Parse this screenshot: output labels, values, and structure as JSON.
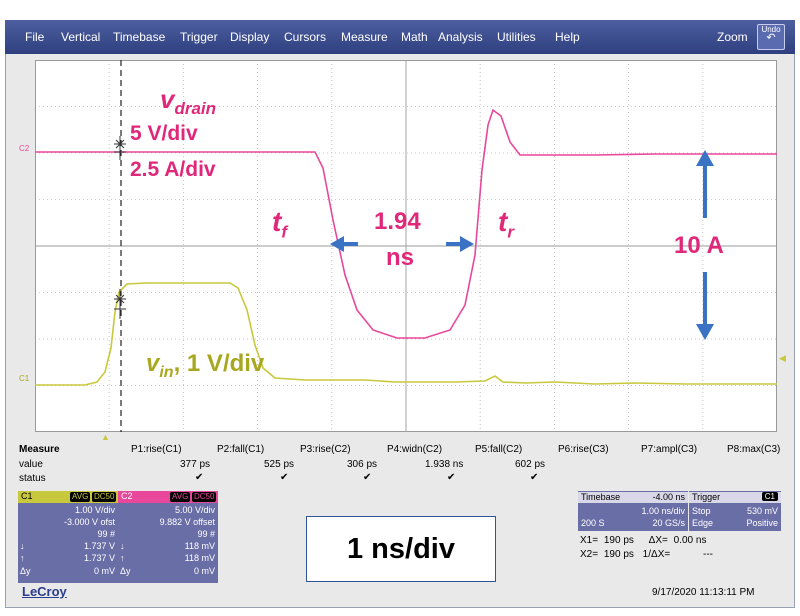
{
  "menu": [
    "File",
    "Vertical",
    "Timebase",
    "Trigger",
    "Display",
    "Cursors",
    "Measure",
    "Math",
    "Analysis",
    "Utilities",
    "Help"
  ],
  "zoom_label": "Zoom",
  "undo_label": "Undo",
  "channel_markers": {
    "c2": "C2",
    "c1": "C1"
  },
  "colors": {
    "c1": "#c8c83c",
    "c2": "#e8479b",
    "annotation_pink": "#e0287a",
    "arrow_blue": "#3a72c4",
    "c1_label_text": "#a8a820"
  },
  "annotations": {
    "vdrain_v": "v",
    "vdrain_sub": "drain",
    "vdrain_scale": "5 V/div",
    "current_scale": "2.5 A/div",
    "tf_t": "t",
    "tf_sub": "f",
    "tr_t": "t",
    "tr_sub": "r",
    "width_value": "1.94",
    "width_unit": "ns",
    "current_value": "10 A",
    "vin_v": "v",
    "vin_sub": "in",
    "vin_scale": ", 1 V/div",
    "timebase_label": "1 ns/div"
  },
  "measure": {
    "title": "Measure",
    "row_labels": [
      "value",
      "status"
    ],
    "columns": [
      {
        "name": "P1:rise(C1)",
        "value": "377 ps",
        "ok": true
      },
      {
        "name": "P2:fall(C1)",
        "value": "525 ps",
        "ok": true
      },
      {
        "name": "P3:rise(C2)",
        "value": "306 ps",
        "ok": true
      },
      {
        "name": "P4:widn(C2)",
        "value": "1.938 ns",
        "ok": true
      },
      {
        "name": "P5:fall(C2)",
        "value": "602 ps",
        "ok": true
      },
      {
        "name": "P6:rise(C3)",
        "value": "",
        "ok": false
      },
      {
        "name": "P7:ampl(C3)",
        "value": "",
        "ok": false
      },
      {
        "name": "P8:max(C3)",
        "value": "",
        "ok": false
      }
    ],
    "check": "✔"
  },
  "c1_box": {
    "name": "C1",
    "avg": "AVG",
    "dc": "DC50",
    "rows": [
      {
        "label": "",
        "value": "1.00 V/div"
      },
      {
        "label": "",
        "value": "-3.000 V ofst"
      },
      {
        "label": "",
        "value": "99 #"
      },
      {
        "label": "↓",
        "value": "1.737 V"
      },
      {
        "label": "↑",
        "value": "1.737 V"
      },
      {
        "label": "Δy",
        "value": "0 mV"
      }
    ]
  },
  "c2_box": {
    "name": "C2",
    "avg": "AVG",
    "dc": "DC50",
    "rows": [
      {
        "label": "",
        "value": "5.00 V/div"
      },
      {
        "label": "",
        "value": "9.882 V offset"
      },
      {
        "label": "",
        "value": "99 #"
      },
      {
        "label": "↓",
        "value": "118 mV"
      },
      {
        "label": "↑",
        "value": "118 mV"
      },
      {
        "label": "Δy",
        "value": "0 mV"
      }
    ]
  },
  "timebase": {
    "title": "Timebase",
    "delay": "-4.00 ns",
    "per_div": "1.00 ns/div",
    "samples": "200 S",
    "rate": "20 GS/s"
  },
  "trigger": {
    "title": "Trigger",
    "channel": "C1",
    "mode": "Stop",
    "level": "530 mV",
    "type": "Edge",
    "slope": "Positive"
  },
  "cursors": {
    "x1": "X1=",
    "x1v": "190 ps",
    "dx": "ΔX=",
    "dxv": "0.00 ns",
    "x2": "X2=",
    "x2v": "190 ps",
    "inv": "1/ΔX=",
    "invv": "---"
  },
  "brand": "LeCroy",
  "datetime": "9/17/2020 11:13:11 PM"
}
